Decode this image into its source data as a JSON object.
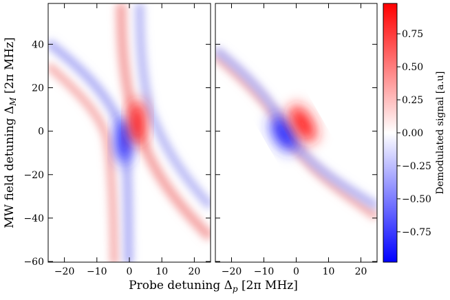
{
  "chart_data": [
    {
      "type": "heatmap",
      "xlabel": [
        "Probe detuning Δ",
        "p",
        " [2π MHz]"
      ],
      "ylabel": [
        "MW field detuning Δ",
        "M",
        " [2π MHz]"
      ],
      "xlim": [
        -25,
        25
      ],
      "xticks": [
        {
          "value": -20,
          "label": "−20"
        },
        {
          "value": -10,
          "label": "−10"
        },
        0,
        10,
        20
      ],
      "ylim": [
        -60.3,
        58.8
      ],
      "yticks": [
        {
          "value": -60,
          "label": "−60"
        },
        {
          "value": -40,
          "label": "−40"
        },
        {
          "value": -20,
          "label": "−20"
        },
        0,
        20,
        40
      ],
      "colorbar": {
        "label": "Demodulated signal [a.u]",
        "lim": [
          -0.98,
          0.98
        ],
        "ticks": [
          {
            "value": -0.75,
            "label": "−0.75"
          },
          {
            "value": -0.5,
            "label": "−0.50"
          },
          {
            "value": -0.25,
            "label": "−0.25"
          },
          {
            "value": 0,
            "label": "0.00"
          },
          0.25,
          {
            "value": 0.5,
            "label": "0.50"
          },
          0.75
        ]
      }
    },
    {
      "type": "heatmap",
      "xlim": [
        -25,
        25
      ],
      "xticks": [
        {
          "value": -20,
          "label": "−20"
        },
        {
          "value": -10,
          "label": "−10"
        },
        0,
        10,
        20
      ]
    }
  ]
}
